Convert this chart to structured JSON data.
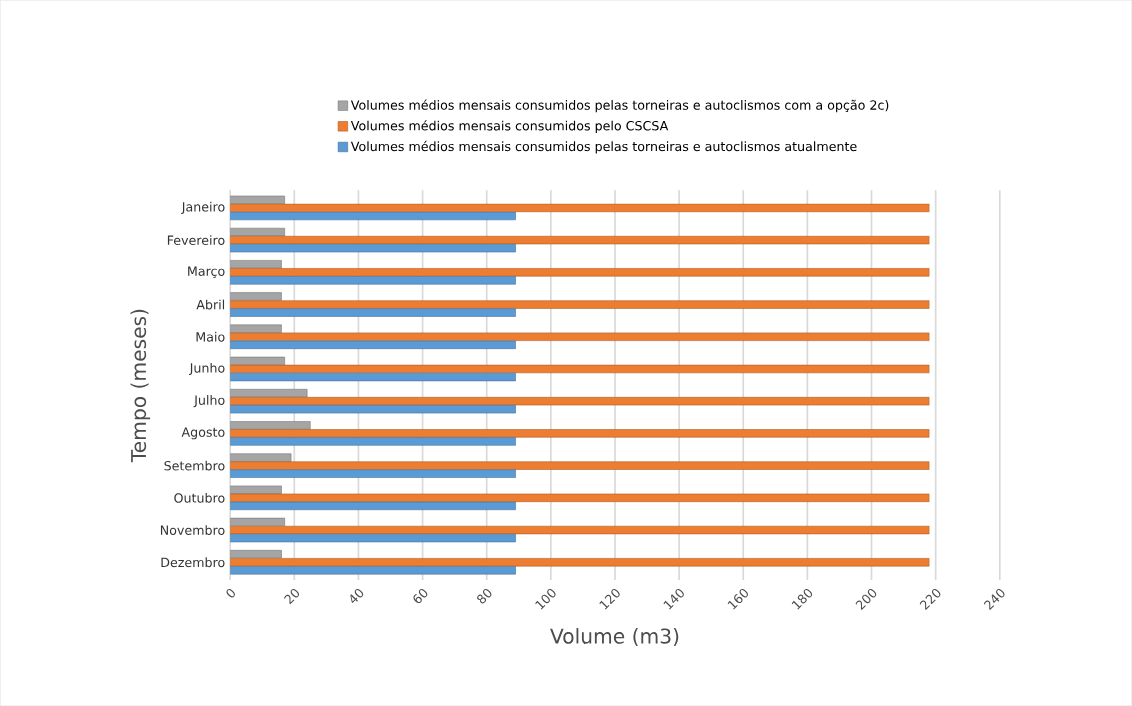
{
  "chart_data": {
    "type": "bar",
    "orientation": "horizontal",
    "xlabel": "Volume (m3)",
    "ylabel": "Tempo (meses)",
    "categories": [
      "Janeiro",
      "Fevereiro",
      "Março",
      "Abril",
      "Maio",
      "Junho",
      "Julho",
      "Agosto",
      "Setembro",
      "Outubro",
      "Novembro",
      "Dezembro"
    ],
    "series": [
      {
        "name": "Volumes médios mensais consumidos pelas torneiras e autoclismos com a opção 2c)",
        "color": "#a5a5a5",
        "values": [
          17,
          17,
          16,
          16,
          16,
          17,
          24,
          25,
          19,
          16,
          17,
          16
        ]
      },
      {
        "name": "Volumes médios mensais consumidos pelo CSCSA",
        "color": "#ed7d31",
        "values": [
          218,
          218,
          218,
          218,
          218,
          218,
          218,
          218,
          218,
          218,
          218,
          218
        ]
      },
      {
        "name": "Volumes médios mensais consumidos pelas torneiras e autoclismos atualmente",
        "color": "#5b9bd5",
        "values": [
          89,
          89,
          89,
          89,
          89,
          89,
          89,
          89,
          89,
          89,
          89,
          89
        ]
      }
    ],
    "xlim": [
      0,
      240
    ],
    "xticks": [
      0,
      20,
      40,
      60,
      80,
      100,
      120,
      140,
      160,
      180,
      200,
      220,
      240
    ],
    "grid": "x",
    "legend": "top"
  }
}
